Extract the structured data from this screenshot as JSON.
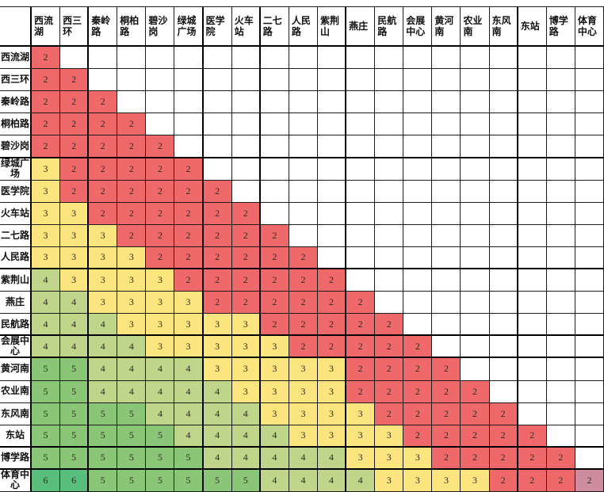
{
  "chart_data": {
    "type": "table",
    "description_visible_text_only": "",
    "columns": [
      "西流湖",
      "西三环",
      "秦岭路",
      "桐柏路",
      "碧沙岗",
      "绿城广场",
      "医学院",
      "火车站",
      "二七路",
      "人民路",
      "紫荆山",
      "燕庄",
      "民航路",
      "会展中心",
      "黄河南",
      "农业南",
      "东风南",
      "东站",
      "博学路",
      "体育中心"
    ],
    "rows": [
      "西流湖",
      "西三环",
      "秦岭路",
      "桐柏路",
      "碧沙岗",
      "绿城广场",
      "医学院",
      "火车站",
      "二七路",
      "人民路",
      "紫荆山",
      "燕庄",
      "民航路",
      "会展中心",
      "黄河南",
      "农业南",
      "东风南",
      "东站",
      "博学路",
      "体育中心"
    ],
    "matrix": [
      [
        2
      ],
      [
        2,
        2
      ],
      [
        2,
        2,
        2
      ],
      [
        2,
        2,
        2,
        2
      ],
      [
        2,
        2,
        2,
        2,
        2
      ],
      [
        3,
        2,
        2,
        2,
        2,
        2
      ],
      [
        3,
        2,
        2,
        2,
        2,
        2,
        2
      ],
      [
        3,
        3,
        2,
        2,
        2,
        2,
        2,
        2
      ],
      [
        3,
        3,
        3,
        2,
        2,
        2,
        2,
        2,
        2
      ],
      [
        3,
        3,
        3,
        3,
        2,
        2,
        2,
        2,
        2,
        2
      ],
      [
        4,
        3,
        3,
        3,
        3,
        2,
        2,
        2,
        2,
        2,
        2
      ],
      [
        4,
        4,
        3,
        3,
        3,
        3,
        2,
        2,
        2,
        2,
        2,
        2
      ],
      [
        4,
        4,
        4,
        3,
        3,
        3,
        3,
        3,
        2,
        2,
        2,
        2,
        2
      ],
      [
        4,
        4,
        4,
        4,
        3,
        3,
        3,
        3,
        3,
        2,
        2,
        2,
        2,
        2
      ],
      [
        5,
        5,
        4,
        4,
        4,
        4,
        3,
        3,
        3,
        3,
        3,
        2,
        2,
        2,
        2
      ],
      [
        5,
        5,
        4,
        4,
        4,
        4,
        4,
        3,
        3,
        3,
        3,
        2,
        2,
        2,
        2,
        2
      ],
      [
        5,
        5,
        5,
        5,
        4,
        4,
        4,
        4,
        3,
        3,
        3,
        3,
        2,
        2,
        2,
        2,
        2
      ],
      [
        5,
        5,
        5,
        5,
        5,
        4,
        4,
        4,
        4,
        3,
        3,
        3,
        3,
        2,
        2,
        2,
        2,
        2
      ],
      [
        5,
        5,
        5,
        5,
        5,
        5,
        4,
        4,
        4,
        4,
        4,
        3,
        3,
        3,
        2,
        2,
        2,
        2,
        2
      ],
      [
        6,
        6,
        5,
        5,
        5,
        5,
        5,
        5,
        4,
        4,
        4,
        4,
        3,
        3,
        3,
        3,
        2,
        2,
        2,
        2
      ]
    ],
    "value_colors": {
      "2": "#EF696B",
      "3": "#FCE57E",
      "4": "#BFD58A",
      "5": "#8BC577",
      "6": "#59BD7B"
    },
    "last_diagonal_cell_color": "#CE8D9E",
    "empty_cell_color": "#FFFFFF",
    "layout": {
      "grid": "on",
      "thick_column_borders_after": [
        0,
        2,
        6,
        8,
        11,
        17
      ],
      "thick_row_borders_after": [
        0,
        5,
        10,
        13,
        14,
        18,
        19
      ]
    }
  }
}
